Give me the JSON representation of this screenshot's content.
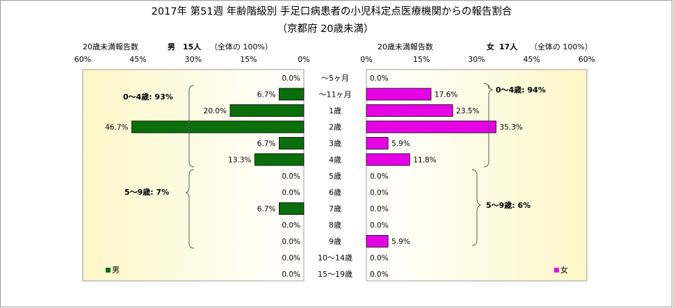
{
  "title_line1": "2017年 第51週 年齢階級別 手足口病患者の小児科定点医療機関からの報告割合",
  "title_line2": "（京都府 20歳未満）",
  "colors": {
    "male": "#0a6e0a",
    "female": "#e600e6",
    "bg_gradient_outer": "#fdf7c8",
    "bg_gradient_inner": "#ffffff"
  },
  "male_header": {
    "label": "20歳未満報告数",
    "sex": "男",
    "count": "15人",
    "note": "（全体の 100%）"
  },
  "female_header": {
    "label": "20歳未満報告数",
    "sex": "女",
    "count": "17人",
    "note": "（全体の 100%）"
  },
  "legend": {
    "male": "男",
    "female": "女"
  },
  "group_labels": {
    "male_0_4": "0～4歳: 93%",
    "male_5_9": "5～9歳: 7%",
    "female_0_4": "0～4歳: 94%",
    "female_5_9": "5～9歳: 6%"
  },
  "chart_data": {
    "type": "bar",
    "orientation": "horizontal-butterfly",
    "categories": [
      "～5ヶ月",
      "～11ヶ月",
      "1歳",
      "2歳",
      "3歳",
      "4歳",
      "5歳",
      "6歳",
      "7歳",
      "8歳",
      "9歳",
      "10～14歳",
      "15～19歳"
    ],
    "series": [
      {
        "name": "男",
        "values": [
          0.0,
          6.7,
          20.0,
          46.7,
          6.7,
          13.3,
          0.0,
          0.0,
          6.7,
          0.0,
          0.0,
          0.0,
          0.0
        ],
        "labels": [
          "0.0%",
          "6.7%",
          "20.0%",
          "46.7%",
          "6.7%",
          "13.3%",
          "0.0%",
          "0.0%",
          "6.7%",
          "0.0%",
          "0.0%",
          "0.0%",
          "0.0%"
        ]
      },
      {
        "name": "女",
        "values": [
          0.0,
          17.6,
          23.5,
          35.3,
          5.9,
          11.8,
          0.0,
          0.0,
          0.0,
          0.0,
          5.9,
          0.0,
          0.0
        ],
        "labels": [
          "0.0%",
          "17.6%",
          "23.5%",
          "35.3%",
          "5.9%",
          "11.8%",
          "0.0%",
          "0.0%",
          "0.0%",
          "0.0%",
          "5.9%",
          "0.0%",
          "0.0%"
        ]
      }
    ],
    "male_ticks": [
      "60%",
      "45%",
      "30%",
      "15%",
      "0%"
    ],
    "female_ticks": [
      "0%",
      "15%",
      "30%",
      "45%",
      "60%"
    ],
    "xlim": [
      0,
      60
    ]
  }
}
